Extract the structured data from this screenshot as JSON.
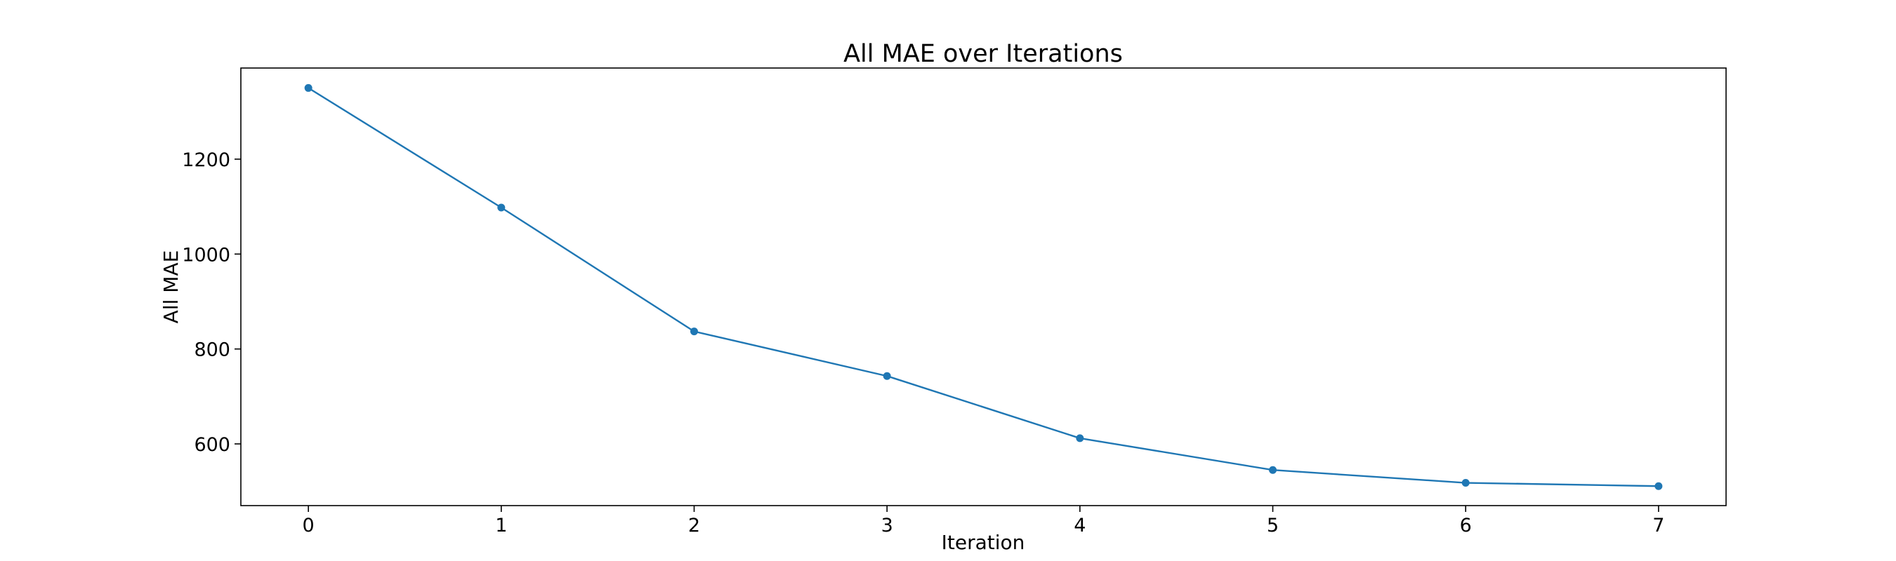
{
  "chart_data": {
    "type": "line",
    "title": "All MAE over Iterations",
    "xlabel": "Iteration",
    "ylabel": "All MAE",
    "x": [
      0,
      1,
      2,
      3,
      4,
      5,
      6,
      7
    ],
    "series": [
      {
        "values": [
          1350,
          1098,
          837,
          743,
          612,
          545,
          518,
          511
        ]
      }
    ],
    "xlim": [
      -0.35,
      7.35
    ],
    "ylim": [
      470,
      1392
    ],
    "x_ticks": [
      0,
      1,
      2,
      3,
      4,
      5,
      6,
      7
    ],
    "y_ticks": [
      600,
      800,
      1000,
      1200
    ],
    "grid": false,
    "legend": "none",
    "colors": {
      "series": "#1f77b4",
      "axes": "#000000"
    }
  }
}
